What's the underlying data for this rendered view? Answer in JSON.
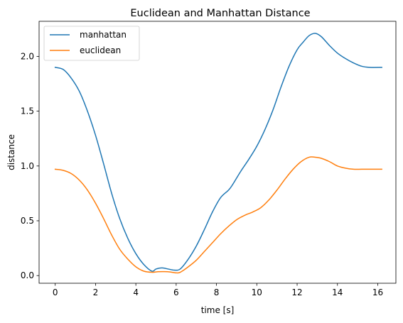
{
  "chart_data": {
    "type": "line",
    "title": "Euclidean and Manhattan Distance",
    "xlabel": "time [s]",
    "ylabel": "distance",
    "xlim": [
      -0.8,
      16.9
    ],
    "ylim": [
      -0.07,
      2.32
    ],
    "xticks": [
      0,
      2,
      4,
      6,
      8,
      10,
      12,
      14,
      16
    ],
    "xtick_labels": [
      "0",
      "2",
      "4",
      "6",
      "8",
      "10",
      "12",
      "14",
      "16"
    ],
    "yticks": [
      0.0,
      0.5,
      1.0,
      1.5,
      2.0
    ],
    "ytick_labels": [
      "0.0",
      "0.5",
      "1.0",
      "1.5",
      "2.0"
    ],
    "grid": false,
    "legend": "top-left",
    "series": [
      {
        "name": "manhattan",
        "color": "#1f77b4",
        "x": [
          0,
          0.4,
          0.8,
          1.2,
          1.6,
          2.0,
          2.4,
          2.8,
          3.2,
          3.6,
          4.0,
          4.4,
          4.8,
          5.0,
          5.3,
          5.6,
          5.9,
          6.2,
          6.6,
          7.0,
          7.4,
          7.8,
          8.2,
          8.6,
          8.8,
          9.2,
          9.6,
          10.0,
          10.4,
          10.8,
          11.2,
          11.6,
          12.0,
          12.3,
          12.6,
          12.9,
          13.2,
          13.6,
          14.0,
          14.4,
          14.8,
          15.2,
          15.6,
          16.2
        ],
        "y": [
          1.9,
          1.88,
          1.8,
          1.68,
          1.5,
          1.28,
          1.02,
          0.75,
          0.52,
          0.34,
          0.2,
          0.1,
          0.04,
          0.06,
          0.07,
          0.06,
          0.05,
          0.06,
          0.15,
          0.27,
          0.42,
          0.58,
          0.71,
          0.78,
          0.83,
          0.95,
          1.06,
          1.18,
          1.33,
          1.51,
          1.72,
          1.91,
          2.06,
          2.13,
          2.19,
          2.21,
          2.18,
          2.1,
          2.03,
          1.98,
          1.94,
          1.91,
          1.9,
          1.9
        ]
      },
      {
        "name": "euclidean",
        "color": "#ff7f0e",
        "x": [
          0,
          0.4,
          0.8,
          1.2,
          1.6,
          2.0,
          2.4,
          2.8,
          3.2,
          3.6,
          4.0,
          4.4,
          4.8,
          5.1,
          5.4,
          5.7,
          6.0,
          6.2,
          6.6,
          7.0,
          7.4,
          7.8,
          8.2,
          8.6,
          9.0,
          9.4,
          9.8,
          10.2,
          10.6,
          11.0,
          11.4,
          11.8,
          12.2,
          12.6,
          12.9,
          13.2,
          13.6,
          14.0,
          14.4,
          14.8,
          15.2,
          15.6,
          16.2
        ],
        "y": [
          0.97,
          0.96,
          0.93,
          0.87,
          0.78,
          0.66,
          0.52,
          0.37,
          0.24,
          0.15,
          0.08,
          0.04,
          0.03,
          0.035,
          0.036,
          0.033,
          0.025,
          0.03,
          0.08,
          0.14,
          0.22,
          0.3,
          0.38,
          0.45,
          0.51,
          0.55,
          0.58,
          0.62,
          0.69,
          0.78,
          0.88,
          0.97,
          1.04,
          1.08,
          1.08,
          1.07,
          1.04,
          1.0,
          0.98,
          0.97,
          0.97,
          0.97,
          0.97
        ]
      }
    ]
  }
}
